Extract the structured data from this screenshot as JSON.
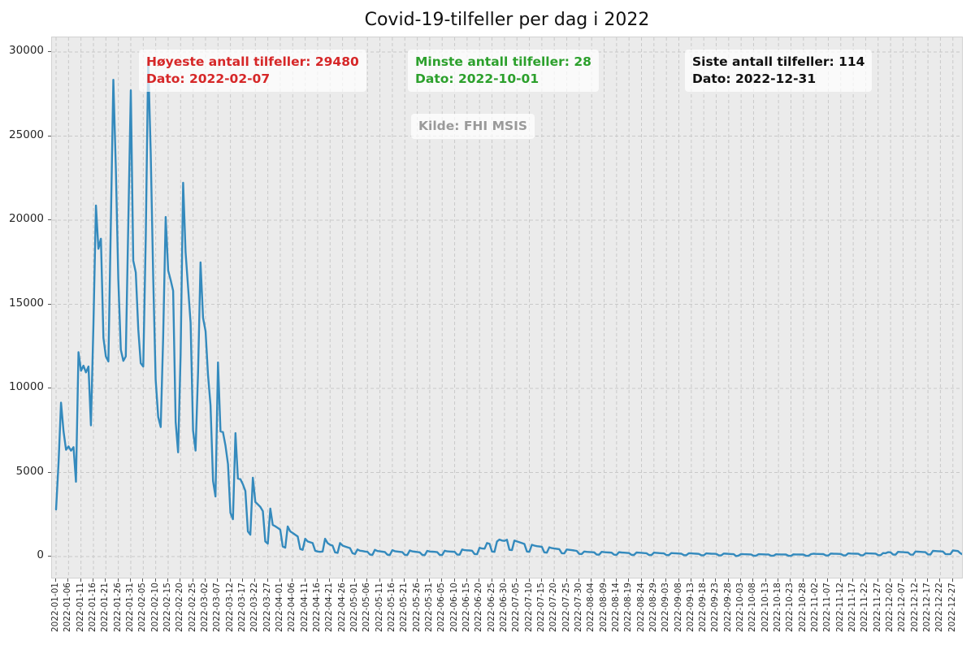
{
  "title": "Covid-19-tilfeller per dag i 2022",
  "annotations": {
    "max": {
      "line1": "Høyeste antall tilfeller: 29480",
      "line2": "Dato: 2022-02-07",
      "color": "#d62728"
    },
    "min": {
      "line1": "Minste antall tilfeller: 28",
      "line2": "Dato: 2022-10-01",
      "color": "#2ca02c"
    },
    "last": {
      "line1": "Siste antall tilfeller: 114",
      "line2": "Dato: 2022-12-31",
      "color": "#111111"
    },
    "source": {
      "text": "Kilde: FHI MSIS",
      "color": "#9a9a9a"
    }
  },
  "chart_data": {
    "type": "line",
    "title": "Covid-19-tilfeller per dag i 2022",
    "xlabel": "",
    "ylabel": "",
    "x_start_date": "2022-01-01",
    "x_end_date": "2022-12-31",
    "grid": true,
    "grid_style": "dashed",
    "legend": false,
    "ylim": [
      0,
      30000
    ],
    "y_ticks": [
      0,
      5000,
      10000,
      15000,
      20000,
      25000,
      30000
    ],
    "y_tick_labels": [
      "0",
      "5000",
      "10000",
      "15000",
      "20000",
      "25000",
      "30000"
    ],
    "x_tick_step_days": 5,
    "x_tick_labels": [
      "2022-01-01",
      "2022-01-06",
      "2022-01-11",
      "2022-01-16",
      "2022-01-21",
      "2022-01-26",
      "2022-01-31",
      "2022-02-05",
      "2022-02-10",
      "2022-02-15",
      "2022-02-20",
      "2022-02-25",
      "2022-03-02",
      "2022-03-07",
      "2022-03-12",
      "2022-03-17",
      "2022-03-22",
      "2022-03-27",
      "2022-04-01",
      "2022-04-06",
      "2022-04-11",
      "2022-04-16",
      "2022-04-21",
      "2022-04-26",
      "2022-05-01",
      "2022-05-06",
      "2022-05-11",
      "2022-05-16",
      "2022-05-21",
      "2022-05-26",
      "2022-05-31",
      "2022-06-05",
      "2022-06-10",
      "2022-06-15",
      "2022-06-20",
      "2022-06-25",
      "2022-06-30",
      "2022-07-05",
      "2022-07-10",
      "2022-07-15",
      "2022-07-20",
      "2022-07-25",
      "2022-07-30",
      "2022-08-04",
      "2022-08-09",
      "2022-08-14",
      "2022-08-19",
      "2022-08-24",
      "2022-08-29",
      "2022-09-03",
      "2022-09-08",
      "2022-09-13",
      "2022-09-18",
      "2022-09-23",
      "2022-09-28",
      "2022-10-03",
      "2022-10-08",
      "2022-10-13",
      "2022-10-18",
      "2022-10-23",
      "2022-10-28",
      "2022-11-02",
      "2022-11-07",
      "2022-11-12",
      "2022-11-17",
      "2022-11-22",
      "2022-11-27",
      "2022-12-02",
      "2022-12-07",
      "2022-12-12",
      "2022-12-17",
      "2022-12-22",
      "2022-12-27"
    ],
    "line_color": "#348abd",
    "notable_points": {
      "max": {
        "date": "2022-02-07",
        "value": 29480
      },
      "min": {
        "date": "2022-10-01",
        "value": 28
      },
      "last": {
        "date": "2022-12-31",
        "value": 114
      }
    },
    "values": [
      2800,
      5600,
      9150,
      7450,
      6350,
      6550,
      6300,
      6500,
      4450,
      12150,
      11050,
      11350,
      10950,
      11300,
      7800,
      13800,
      20870,
      18300,
      18900,
      13000,
      11900,
      11600,
      20000,
      28350,
      23040,
      16500,
      12300,
      11640,
      11900,
      19800,
      27720,
      17600,
      16900,
      13500,
      11500,
      11300,
      19000,
      29480,
      24000,
      16500,
      10500,
      8300,
      7700,
      13000,
      20190,
      17000,
      16450,
      15800,
      8000,
      6200,
      12000,
      22220,
      18100,
      16000,
      13900,
      7500,
      6300,
      11000,
      17490,
      14200,
      13400,
      10800,
      9000,
      4500,
      3570,
      11540,
      7440,
      7400,
      6600,
      5500,
      2600,
      2220,
      7340,
      4640,
      4600,
      4300,
      3900,
      1500,
      1300,
      4690,
      3240,
      3100,
      2950,
      2700,
      900,
      770,
      2850,
      1880,
      1800,
      1700,
      1600,
      600,
      530,
      1790,
      1500,
      1400,
      1300,
      1200,
      450,
      400,
      1060,
      900,
      850,
      800,
      350,
      300,
      280,
      300,
      1060,
      800,
      700,
      650,
      250,
      220,
      800,
      650,
      600,
      550,
      500,
      200,
      150,
      420,
      350,
      330,
      300,
      280,
      120,
      100,
      400,
      330,
      310,
      290,
      270,
      110,
      95,
      380,
      320,
      300,
      280,
      260,
      105,
      90,
      360,
      310,
      290,
      270,
      250,
      100,
      85,
      340,
      300,
      290,
      280,
      260,
      100,
      90,
      350,
      310,
      300,
      290,
      280,
      120,
      110,
      420,
      380,
      370,
      360,
      350,
      150,
      140,
      520,
      480,
      470,
      800,
      760,
      300,
      280,
      900,
      1010,
      950,
      930,
      1000,
      400,
      380,
      950,
      900,
      850,
      800,
      750,
      300,
      280,
      700,
      650,
      620,
      600,
      580,
      250,
      230,
      550,
      500,
      480,
      460,
      440,
      200,
      190,
      420,
      400,
      380,
      360,
      340,
      160,
      150,
      300,
      280,
      270,
      260,
      250,
      120,
      110,
      280,
      260,
      250,
      240,
      230,
      110,
      100,
      260,
      240,
      230,
      220,
      210,
      100,
      95,
      240,
      230,
      220,
      210,
      200,
      95,
      90,
      230,
      220,
      210,
      200,
      190,
      90,
      85,
      210,
      200,
      190,
      180,
      170,
      85,
      80,
      200,
      190,
      180,
      170,
      160,
      80,
      75,
      190,
      180,
      170,
      165,
      160,
      75,
      70,
      180,
      170,
      160,
      150,
      140,
      28,
      60,
      150,
      140,
      135,
      130,
      125,
      55,
      50,
      140,
      135,
      130,
      128,
      125,
      52,
      48,
      135,
      130,
      128,
      125,
      120,
      50,
      45,
      130,
      128,
      125,
      122,
      120,
      48,
      44,
      140,
      170,
      160,
      155,
      150,
      145,
      70,
      65,
      180,
      170,
      165,
      160,
      155,
      75,
      70,
      190,
      180,
      175,
      170,
      165,
      80,
      75,
      200,
      190,
      185,
      180,
      175,
      85,
      80,
      210,
      200,
      260,
      250,
      120,
      110,
      280,
      270,
      260,
      250,
      240,
      115,
      110,
      300,
      290,
      280,
      270,
      260,
      130,
      120,
      340,
      330,
      320,
      310,
      300,
      150,
      140,
      150,
      360,
      350,
      330,
      200,
      114
    ]
  }
}
